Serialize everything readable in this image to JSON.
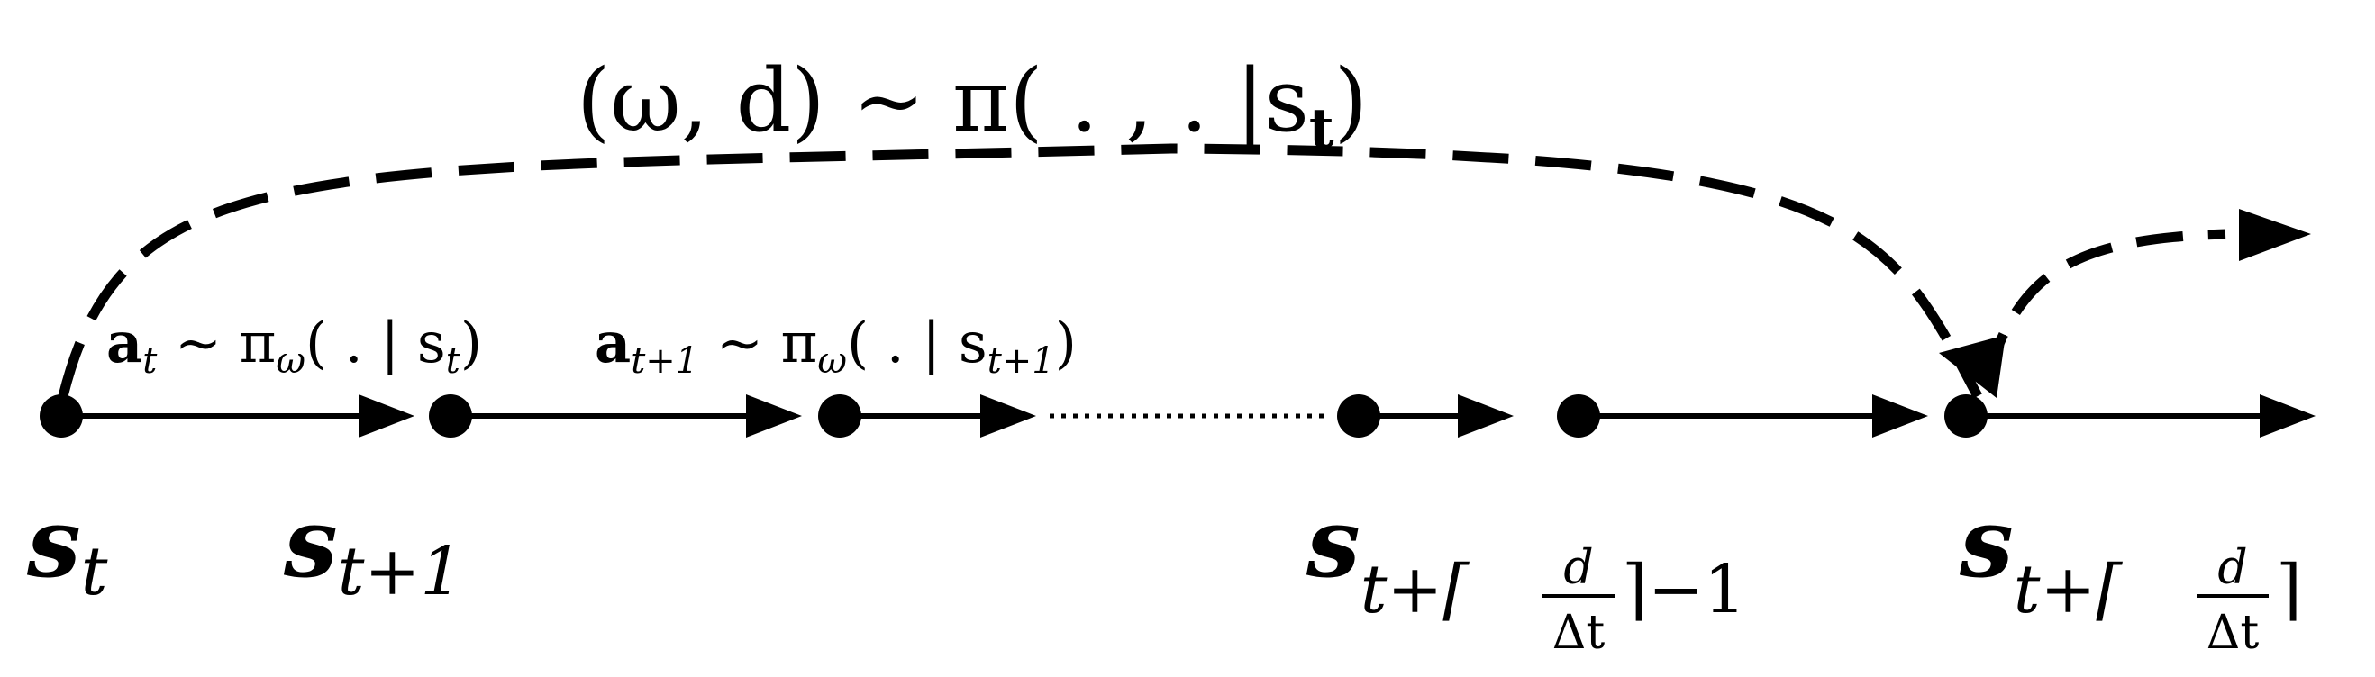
{
  "diagram": {
    "policy_label": "(ω, d) ~ π( . , . |s",
    "policy_label_sub": "t",
    "policy_label_close": ")",
    "action1": {
      "prefix": "a",
      "sub": "t",
      "mid": " ~ π",
      "pi_sub": "ω",
      "args": "( . | s",
      "args_sub": "t",
      "close": ")"
    },
    "action2": {
      "prefix": "a",
      "sub": "t+1",
      "mid": " ~ π",
      "pi_sub": "ω",
      "args": "( . | s",
      "args_sub": "t+1",
      "close": ")"
    },
    "states": {
      "s_t": {
        "base": "s",
        "sub": "t"
      },
      "s_t1": {
        "base": "s",
        "sub": "t+1"
      },
      "s_prev": {
        "base": "s",
        "sub_pre": "t+⌈",
        "frac_num": "d",
        "frac_den": "Δt",
        "sub_post": "⌉−1"
      },
      "s_next": {
        "base": "s",
        "sub_pre": "t+⌈",
        "frac_num": "d",
        "frac_den": "Δt",
        "sub_post": "⌉"
      }
    }
  }
}
